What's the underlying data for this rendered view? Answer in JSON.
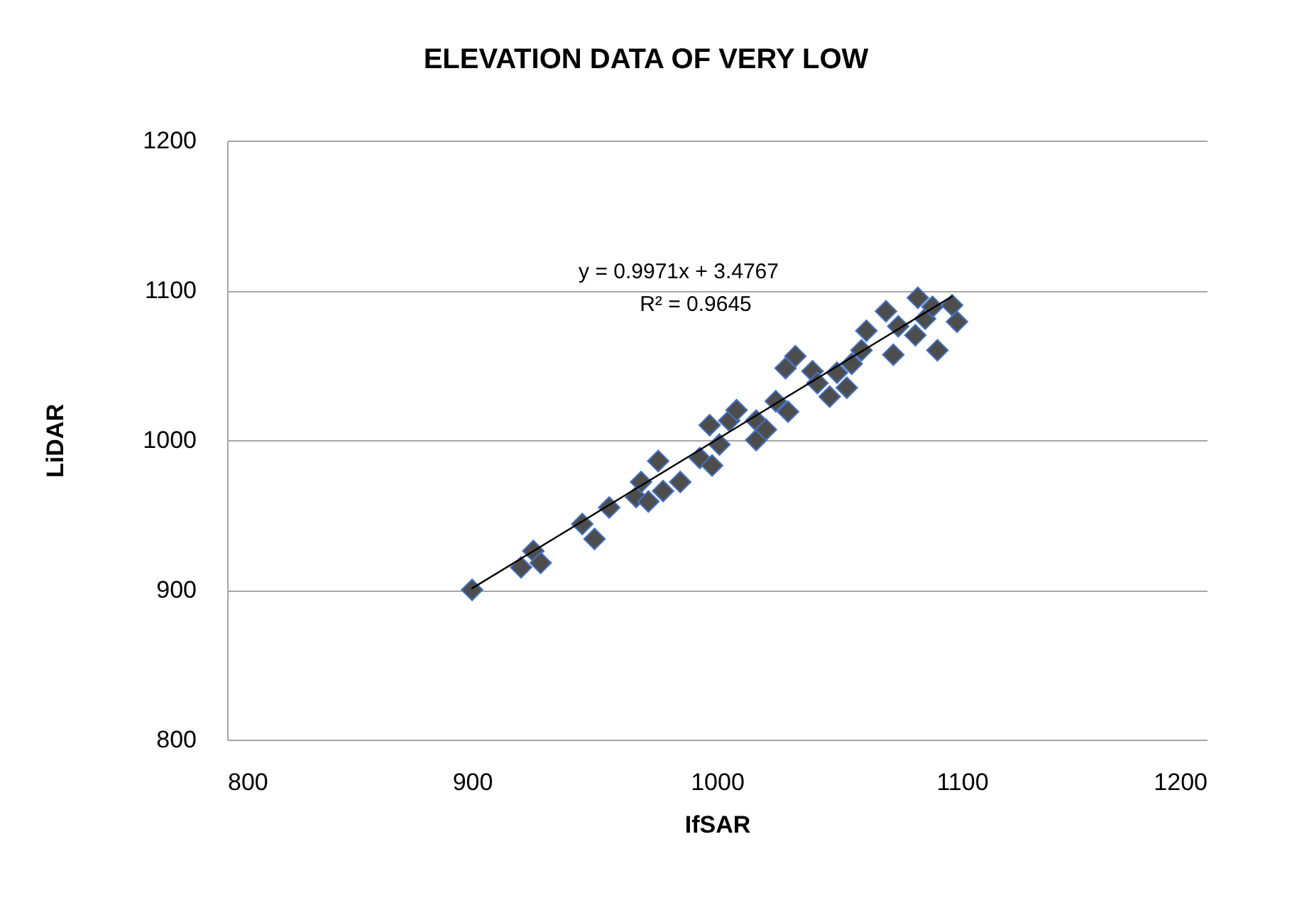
{
  "chart_data": {
    "type": "scatter",
    "title": "ELEVATION DATA OF VERY LOW",
    "xlabel": "IfSAR",
    "ylabel": "LiDAR",
    "xlim": [
      800,
      1200
    ],
    "xticks": [
      800,
      900,
      1000,
      1100,
      1200
    ],
    "ylim": [
      800,
      1200
    ],
    "yticks": [
      800,
      900,
      1000,
      1100,
      1200
    ],
    "grid": "y",
    "marker": "diamond",
    "series": [
      {
        "color": "#4d4d4d",
        "x": [
          900,
          920,
          925,
          928,
          945,
          950,
          956,
          967,
          969,
          972,
          976,
          978,
          985,
          993,
          998,
          997,
          1001,
          1005,
          1008,
          1016,
          1016,
          1020,
          1024,
          1029,
          1032,
          1028,
          1039,
          1041,
          1046,
          1049,
          1053,
          1055,
          1061,
          1059,
          1069,
          1072,
          1074,
          1082,
          1081,
          1085,
          1090,
          1088,
          1096,
          1098
        ],
        "values": [
          900,
          915,
          926,
          918,
          944,
          934,
          955,
          962,
          972,
          959,
          986,
          966,
          972,
          988,
          983,
          1010,
          997,
          1013,
          1020,
          1013,
          1000,
          1007,
          1026,
          1019,
          1056,
          1048,
          1046,
          1038,
          1029,
          1045,
          1035,
          1051,
          1073,
          1060,
          1086,
          1057,
          1076,
          1095,
          1070,
          1081,
          1060,
          1089,
          1090,
          1079
        ]
      },
      {
        "type": "line",
        "color": "#000000",
        "marker": "none",
        "x": [
          900,
          1096
        ],
        "values": [
          901,
          1096
        ]
      }
    ],
    "annotations": [
      "y = 0.9971x + 3.4767",
      "R² = 0.9645"
    ]
  }
}
